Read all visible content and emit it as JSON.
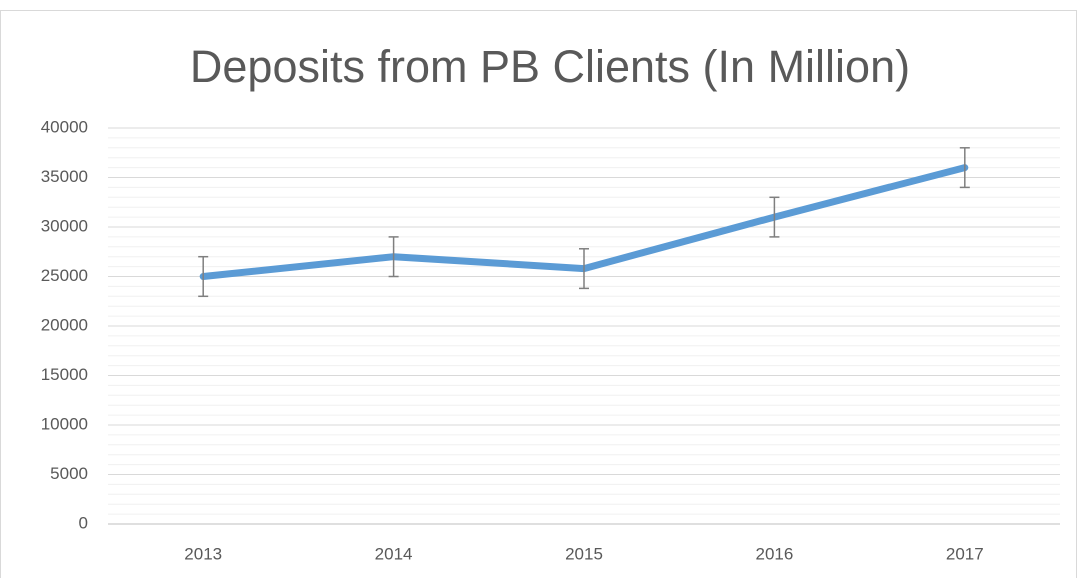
{
  "chart_data": {
    "type": "line",
    "title": "Deposits from PB Clients (In Million)",
    "categories": [
      "2013",
      "2014",
      "2015",
      "2016",
      "2017"
    ],
    "series": [
      {
        "color": "#5b9bd5",
        "values": [
          25000,
          27000,
          25800,
          31000,
          36000
        ],
        "errors": [
          2000,
          2000,
          2000,
          2000,
          2000
        ],
        "error_color": "#7f7f7f"
      }
    ],
    "ylim": [
      0,
      40000
    ],
    "yticks": [
      0,
      5000,
      10000,
      15000,
      20000,
      25000,
      30000,
      35000,
      40000
    ],
    "grid": true,
    "minor_grid": true
  }
}
